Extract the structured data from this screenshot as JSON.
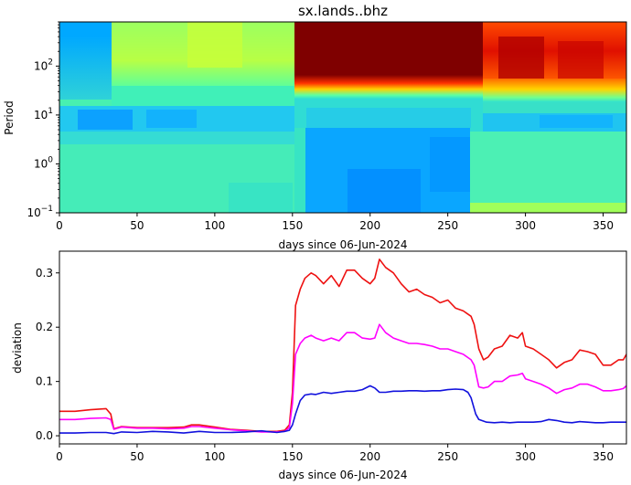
{
  "chart_data": [
    {
      "type": "heatmap",
      "title": "sx.lands..bhz",
      "xlabel": "days since 06-Jun-2024",
      "ylabel": "Period",
      "xlim": [
        0,
        365
      ],
      "ylim": [
        0.1,
        800
      ],
      "yscale": "log",
      "colormap": "jet",
      "x_ticks": [
        "0",
        "50",
        "100",
        "150",
        "200",
        "250",
        "300",
        "350"
      ],
      "y_ticks": [
        {
          "base": "10",
          "exp": "−1"
        },
        {
          "base": "10",
          "exp": "0"
        },
        {
          "base": "10",
          "exp": "1"
        },
        {
          "base": "10",
          "exp": "2"
        }
      ]
    },
    {
      "type": "line",
      "xlabel": "days since 06-Jun-2024",
      "ylabel": "deviation",
      "xlim": [
        0,
        365
      ],
      "ylim": [
        -0.015,
        0.34
      ],
      "x_ticks": [
        "0",
        "50",
        "100",
        "150",
        "200",
        "250",
        "300",
        "350"
      ],
      "y_ticks": [
        "0.0",
        "0.1",
        "0.2",
        "0.3"
      ],
      "series": [
        {
          "color": "#ee1111",
          "x": [
            0,
            10,
            20,
            30,
            33,
            35,
            40,
            50,
            60,
            70,
            80,
            85,
            90,
            100,
            110,
            120,
            130,
            140,
            145,
            148,
            150,
            152,
            155,
            158,
            162,
            165,
            170,
            175,
            180,
            185,
            190,
            195,
            200,
            203,
            206,
            210,
            215,
            220,
            225,
            230,
            235,
            240,
            245,
            250,
            255,
            260,
            265,
            267,
            270,
            273,
            276,
            280,
            285,
            290,
            295,
            298,
            300,
            305,
            310,
            315,
            320,
            325,
            330,
            335,
            340,
            345,
            350,
            355,
            360,
            363,
            365
          ],
          "y": [
            0.045,
            0.045,
            0.048,
            0.05,
            0.04,
            0.013,
            0.017,
            0.015,
            0.015,
            0.015,
            0.016,
            0.02,
            0.02,
            0.016,
            0.012,
            0.01,
            0.008,
            0.008,
            0.01,
            0.02,
            0.08,
            0.24,
            0.27,
            0.29,
            0.3,
            0.295,
            0.28,
            0.295,
            0.275,
            0.305,
            0.305,
            0.29,
            0.28,
            0.29,
            0.325,
            0.31,
            0.3,
            0.28,
            0.265,
            0.27,
            0.26,
            0.255,
            0.245,
            0.25,
            0.235,
            0.23,
            0.22,
            0.205,
            0.16,
            0.14,
            0.145,
            0.16,
            0.165,
            0.185,
            0.18,
            0.19,
            0.165,
            0.16,
            0.15,
            0.14,
            0.125,
            0.135,
            0.14,
            0.158,
            0.155,
            0.15,
            0.13,
            0.13,
            0.14,
            0.14,
            0.15
          ]
        },
        {
          "color": "#ff00ff",
          "x": [
            0,
            10,
            20,
            30,
            33,
            35,
            40,
            50,
            60,
            70,
            80,
            85,
            90,
            100,
            110,
            120,
            130,
            140,
            145,
            148,
            150,
            152,
            155,
            158,
            162,
            165,
            170,
            175,
            180,
            185,
            190,
            195,
            200,
            203,
            206,
            210,
            215,
            220,
            225,
            230,
            235,
            240,
            245,
            250,
            255,
            260,
            265,
            267,
            270,
            273,
            276,
            280,
            285,
            290,
            295,
            298,
            300,
            305,
            310,
            315,
            320,
            325,
            330,
            335,
            340,
            345,
            350,
            355,
            360,
            363,
            365
          ],
          "y": [
            0.03,
            0.03,
            0.032,
            0.033,
            0.03,
            0.012,
            0.016,
            0.014,
            0.014,
            0.013,
            0.014,
            0.017,
            0.017,
            0.014,
            0.011,
            0.009,
            0.007,
            0.007,
            0.008,
            0.015,
            0.06,
            0.15,
            0.17,
            0.18,
            0.185,
            0.18,
            0.175,
            0.18,
            0.175,
            0.19,
            0.19,
            0.18,
            0.178,
            0.18,
            0.205,
            0.19,
            0.18,
            0.175,
            0.17,
            0.17,
            0.168,
            0.165,
            0.16,
            0.16,
            0.155,
            0.15,
            0.14,
            0.13,
            0.09,
            0.088,
            0.09,
            0.1,
            0.1,
            0.11,
            0.112,
            0.115,
            0.105,
            0.1,
            0.095,
            0.088,
            0.078,
            0.085,
            0.088,
            0.095,
            0.095,
            0.09,
            0.083,
            0.083,
            0.085,
            0.087,
            0.092
          ]
        },
        {
          "color": "#1111dd",
          "x": [
            0,
            10,
            20,
            30,
            35,
            40,
            50,
            60,
            70,
            80,
            90,
            100,
            110,
            120,
            130,
            140,
            145,
            148,
            150,
            152,
            155,
            158,
            162,
            165,
            170,
            175,
            180,
            185,
            190,
            195,
            200,
            203,
            206,
            210,
            215,
            220,
            225,
            230,
            235,
            240,
            245,
            250,
            255,
            260,
            263,
            265,
            268,
            270,
            275,
            280,
            285,
            290,
            295,
            300,
            305,
            310,
            315,
            320,
            325,
            330,
            335,
            340,
            345,
            350,
            355,
            360,
            365
          ],
          "y": [
            0.005,
            0.005,
            0.006,
            0.006,
            0.004,
            0.007,
            0.006,
            0.008,
            0.007,
            0.005,
            0.008,
            0.006,
            0.006,
            0.007,
            0.009,
            0.006,
            0.008,
            0.01,
            0.02,
            0.04,
            0.065,
            0.075,
            0.077,
            0.076,
            0.08,
            0.078,
            0.08,
            0.082,
            0.082,
            0.085,
            0.092,
            0.088,
            0.08,
            0.08,
            0.082,
            0.082,
            0.083,
            0.083,
            0.082,
            0.083,
            0.083,
            0.085,
            0.086,
            0.085,
            0.08,
            0.07,
            0.04,
            0.03,
            0.025,
            0.024,
            0.025,
            0.024,
            0.025,
            0.025,
            0.025,
            0.026,
            0.03,
            0.028,
            0.025,
            0.024,
            0.026,
            0.025,
            0.024,
            0.024,
            0.025,
            0.025,
            0.025
          ]
        }
      ]
    }
  ]
}
